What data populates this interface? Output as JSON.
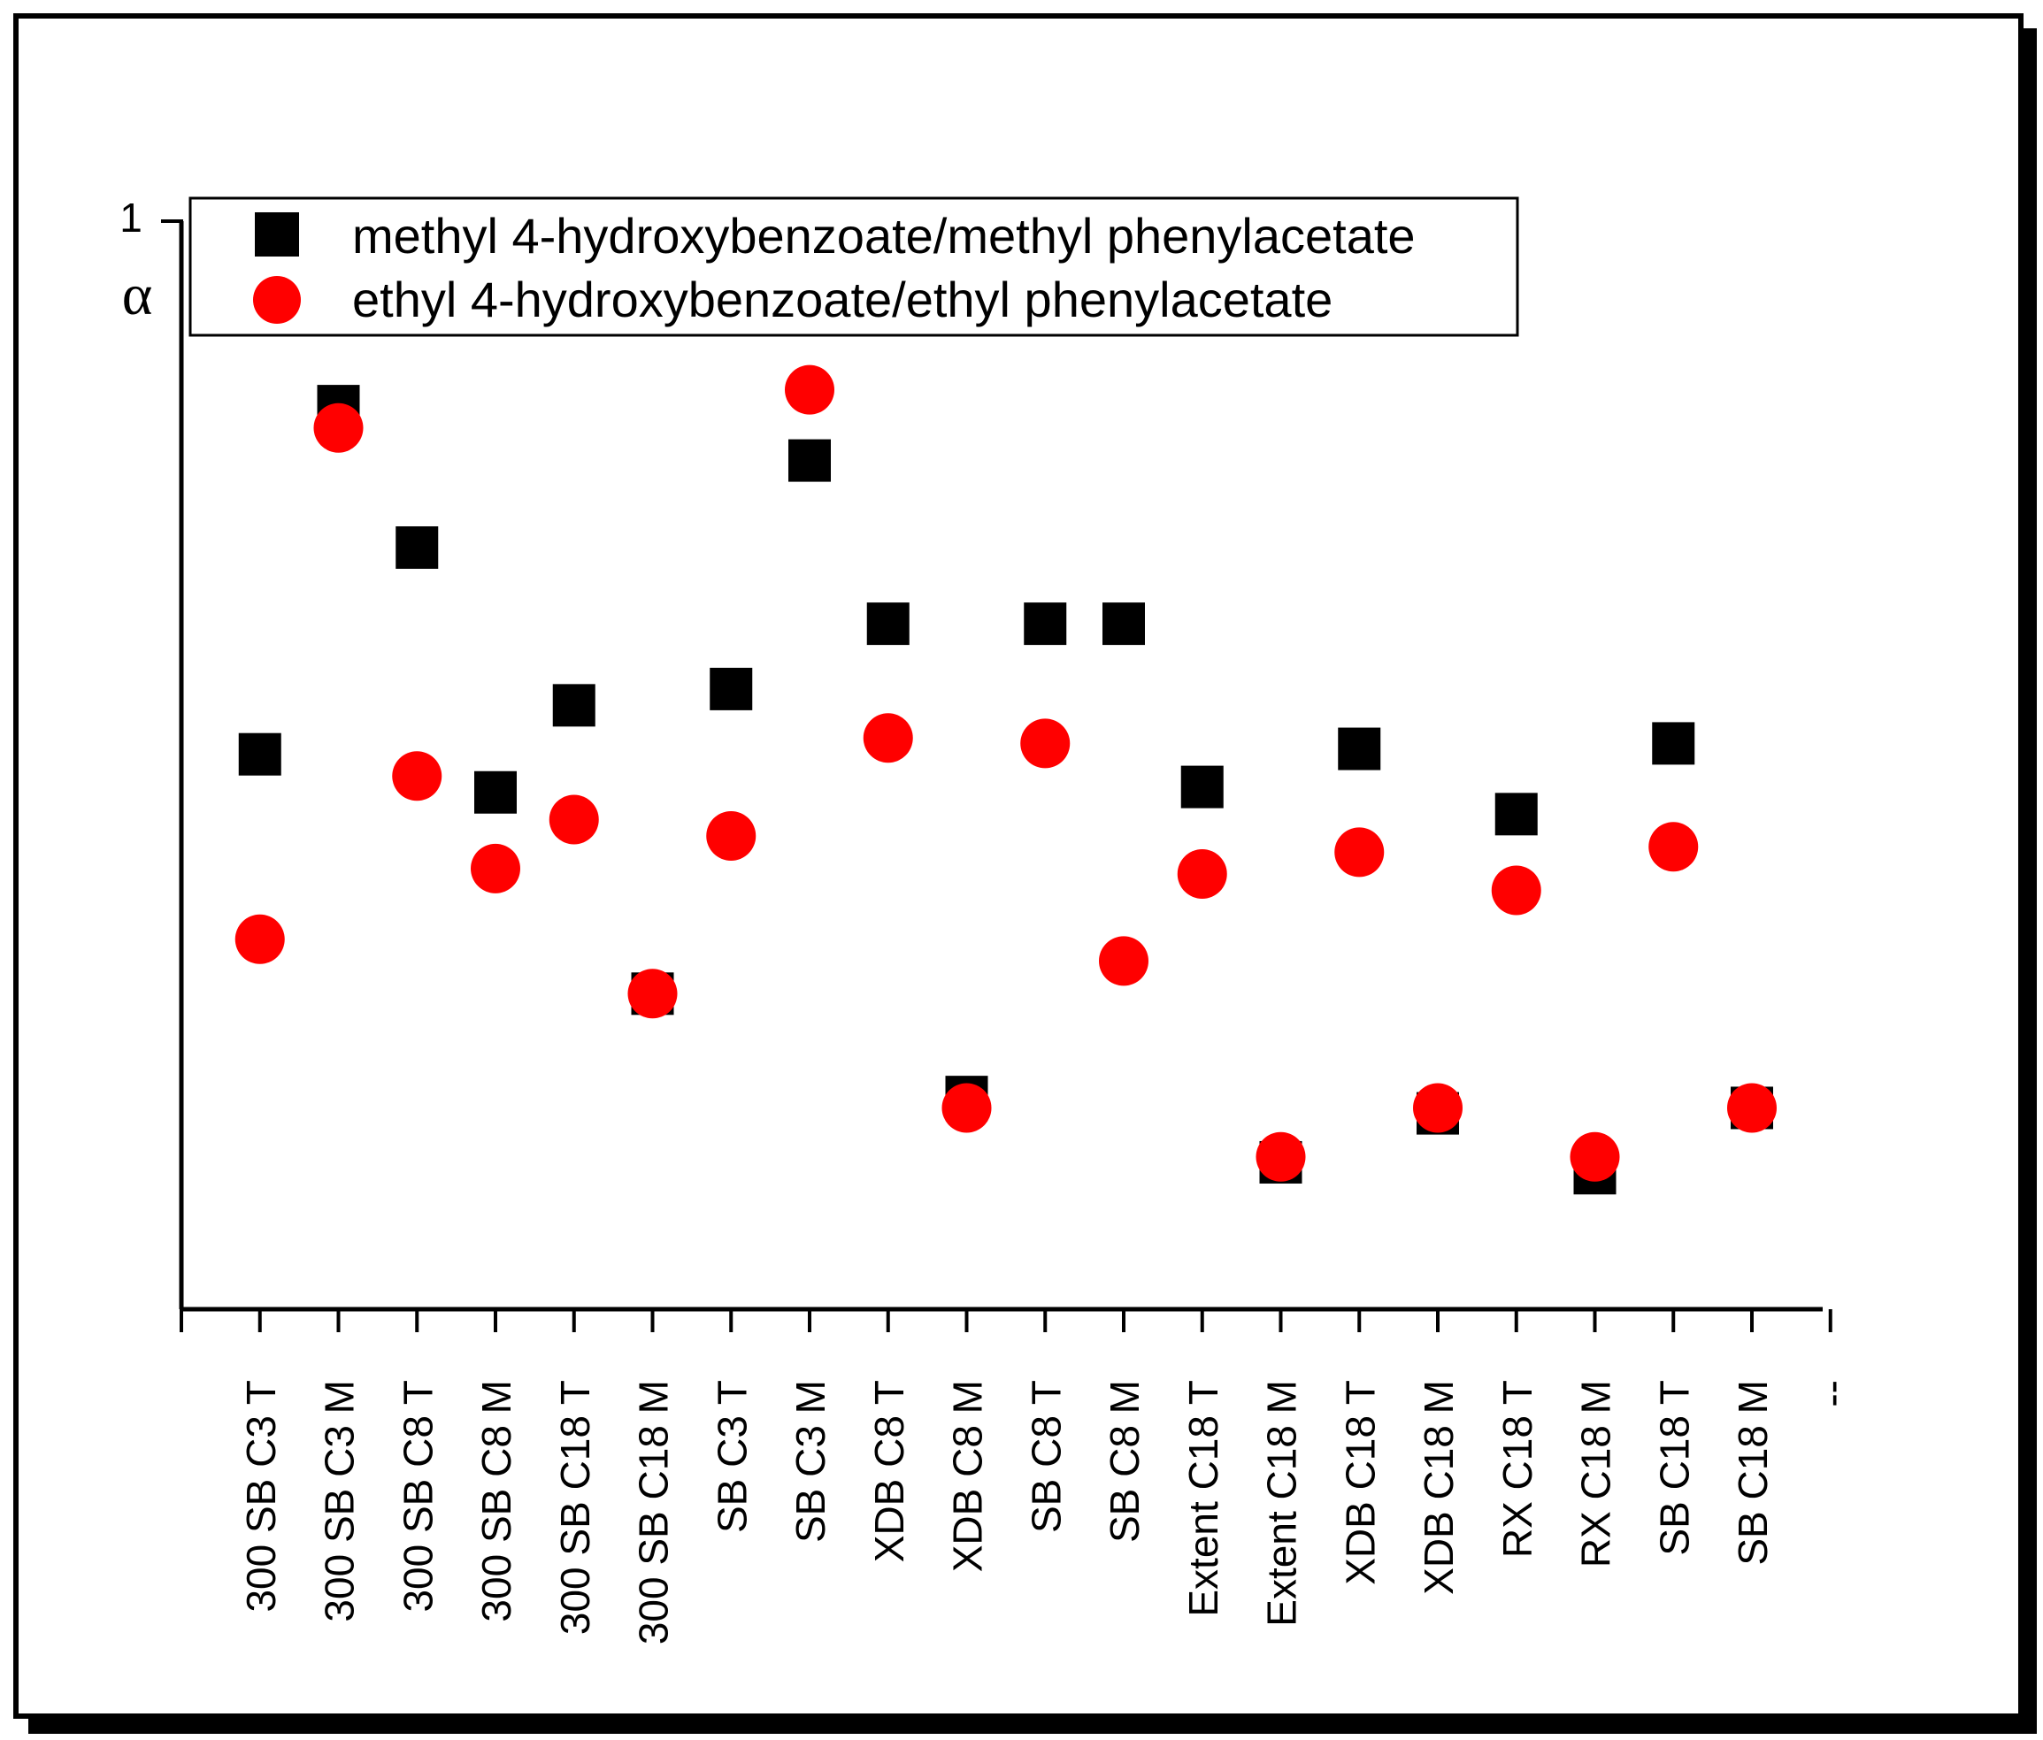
{
  "chart_data": {
    "type": "scatter",
    "title": "",
    "xlabel": "",
    "ylabel": "α",
    "y_tick_labels": [
      "1"
    ],
    "ylim": [
      0,
      1
    ],
    "categories": [
      "300 SB C3 T",
      "300 SB C3 M",
      "300 SB C8 T",
      "300 SB C8 M",
      "300 SB C18 T",
      "300 SB C18 M",
      "SB C3 T",
      "SB C3 M",
      "XDB C8 T",
      "XDB C8 M",
      "SB C8 T",
      "SB C8 M",
      "Extent C18 T",
      "Extent C18 M",
      "XDB C18 T",
      "XDB C18 M",
      "RX C18 T",
      "RX C18 M",
      "SB C18 T",
      "SB C18 M",
      "--"
    ],
    "series": [
      {
        "name": "methyl 4-hydroxybenzoate/methyl phenylacetate",
        "marker": "square",
        "color": "#000000",
        "values": [
          0.51,
          0.83,
          0.7,
          0.475,
          0.555,
          0.29,
          0.57,
          0.78,
          0.63,
          0.195,
          0.63,
          0.63,
          0.48,
          0.135,
          0.515,
          0.18,
          0.455,
          0.125,
          0.52,
          0.185,
          null
        ]
      },
      {
        "name": "ethyl 4-hydroxybenzoate/ethyl phenylacetate",
        "marker": "circle",
        "color": "#ff0000",
        "values": [
          0.34,
          0.81,
          0.49,
          0.405,
          0.45,
          0.29,
          0.435,
          0.845,
          0.525,
          0.185,
          0.52,
          0.32,
          0.4,
          0.14,
          0.42,
          0.185,
          0.385,
          0.14,
          0.425,
          0.185,
          null
        ]
      }
    ],
    "legend_position": "top"
  }
}
